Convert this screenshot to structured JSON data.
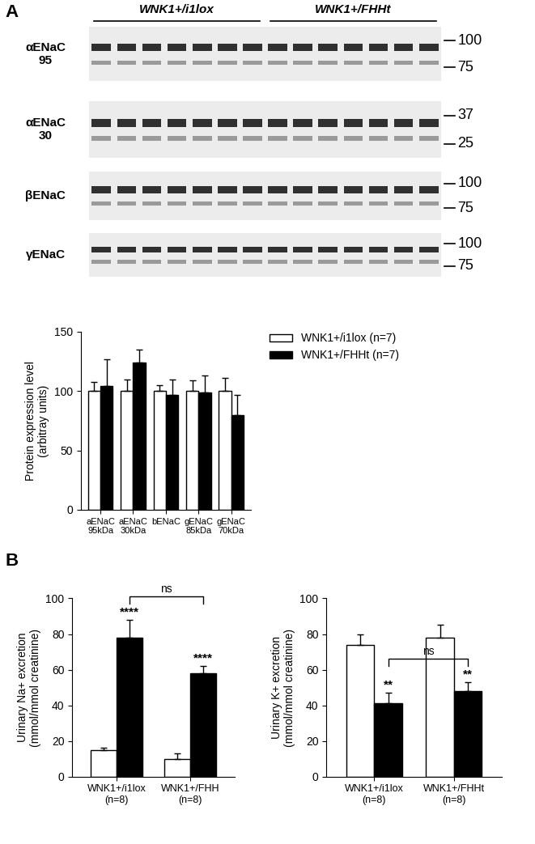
{
  "panel_labels": [
    "A",
    "B"
  ],
  "blot": {
    "groups": [
      "WNK1+/i1lox",
      "WNK1+/FHHt"
    ],
    "lanes_per_group": 7,
    "strips": [
      {
        "label": "αENaC\n95",
        "markers": [
          100,
          75
        ]
      },
      {
        "label": "αENaC\n30",
        "markers": [
          37,
          25
        ]
      },
      {
        "label": "βENaC",
        "markers": [
          100,
          75
        ]
      },
      {
        "label": "γENaC",
        "markers": [
          100,
          75
        ]
      }
    ]
  },
  "chart_data": [
    {
      "type": "bar",
      "categories": [
        "aENaC\n95kDa",
        "aENaC\n30kDa",
        "bENaC",
        "gENaC\n85kDa",
        "gENaC\n70kDa"
      ],
      "ylabel": "Protein expression level\n(arbitray units)",
      "ylim": [
        0,
        150
      ],
      "yticks": [
        0,
        50,
        100,
        150
      ],
      "legend": "upper left",
      "series": [
        {
          "name": "WNK1+/i1lox (n=7)",
          "color": "#ffffff",
          "values": [
            100,
            100,
            100,
            100,
            100
          ],
          "errors": [
            8,
            10,
            5,
            9,
            11
          ]
        },
        {
          "name": "WNK1+/FHHt (n=7)",
          "color": "#000000",
          "values": [
            104,
            124,
            97,
            99,
            80
          ],
          "errors": [
            23,
            11,
            13,
            14,
            17
          ]
        }
      ]
    },
    {
      "type": "bar",
      "categories": [
        "WNK1+/i1lox\n(n=8)",
        "WNK1+/FHH\n(n=8)"
      ],
      "ylabel": "Urinary Na+ excretion\n(mmol/mmol creatinine)",
      "ylim": [
        0,
        100
      ],
      "yticks": [
        0,
        20,
        40,
        60,
        80,
        100
      ],
      "series": [
        {
          "color": "#ffffff",
          "values": [
            15,
            10
          ],
          "errors": [
            1,
            3
          ]
        },
        {
          "color": "#000000",
          "values": [
            78,
            58
          ],
          "errors": [
            10,
            4
          ]
        }
      ],
      "annotations": [
        {
          "text": "****",
          "series": 1,
          "category": 0
        },
        {
          "text": "****",
          "series": 1,
          "category": 1
        },
        {
          "text": "ns",
          "series": 1,
          "bracket": [
            0,
            1
          ]
        }
      ]
    },
    {
      "type": "bar",
      "categories": [
        "WNK1+/i1lox\n(n=8)",
        "WNK1+/FHHt\n(n=8)"
      ],
      "ylabel": "Urinary K+ excretion\n(mmol/mmol creatinine)",
      "ylim": [
        0,
        100
      ],
      "yticks": [
        0,
        20,
        40,
        60,
        80,
        100
      ],
      "series": [
        {
          "color": "#ffffff",
          "values": [
            74,
            78
          ],
          "errors": [
            6,
            7
          ]
        },
        {
          "color": "#000000",
          "values": [
            41,
            48
          ],
          "errors": [
            6,
            5
          ]
        }
      ],
      "annotations": [
        {
          "text": "**",
          "series": 1,
          "category": 0
        },
        {
          "text": "**",
          "series": 1,
          "category": 1
        },
        {
          "text": "ns",
          "series": 1,
          "bracket": [
            0,
            1
          ]
        }
      ]
    }
  ]
}
